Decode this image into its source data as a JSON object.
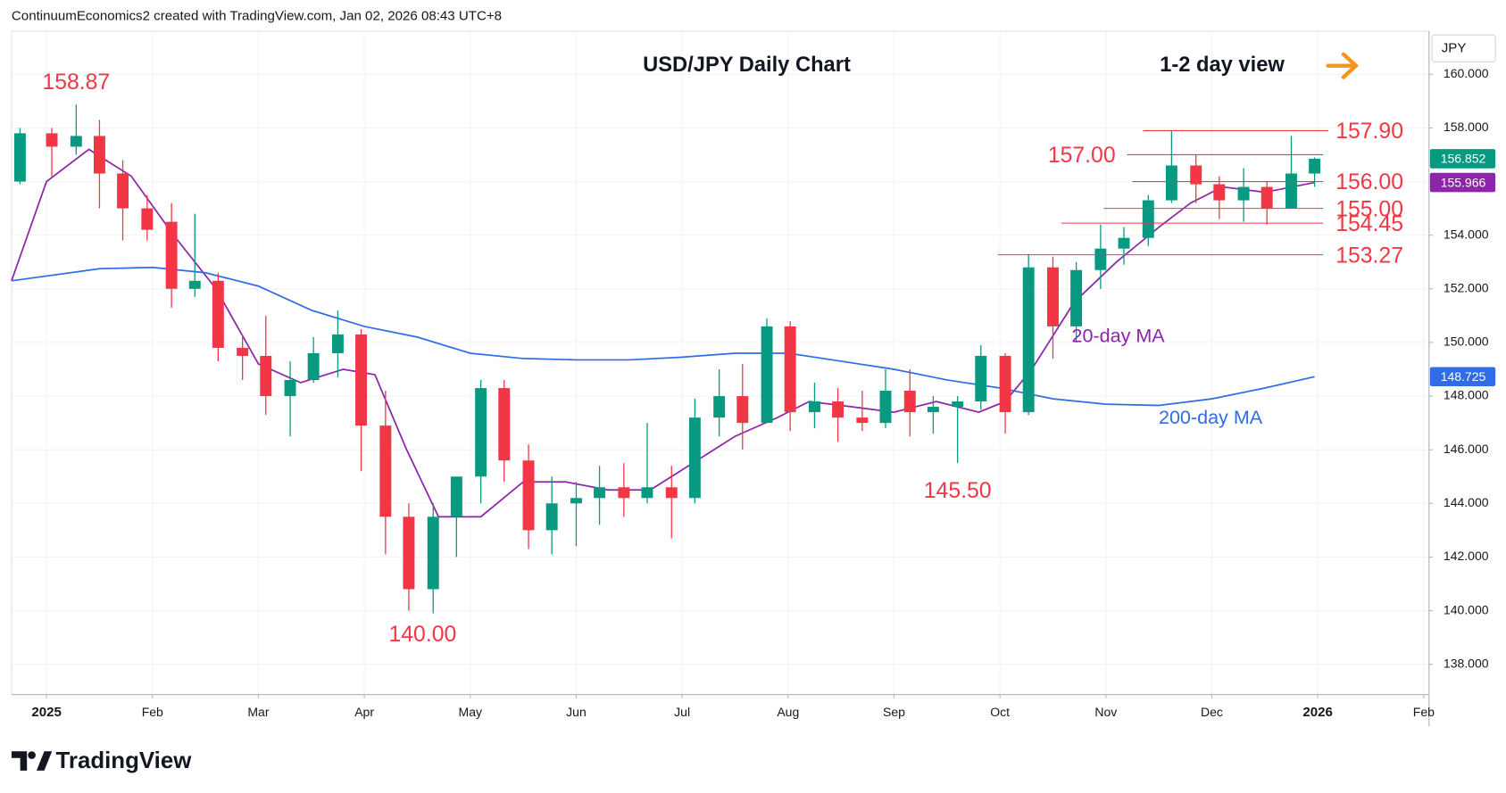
{
  "chart_data": {
    "type": "candlestick",
    "header": "ContinuumEconomics2 created with TradingView.com, Jan 02, 2026 08:43 UTC+8",
    "title": "USD/JPY Daily Chart",
    "subtitle": "1-2 day view",
    "currency": "JPY",
    "brand": "TradingView",
    "up_color": "#089981",
    "down_color": "#f23645",
    "grid": true,
    "xlim": [
      -0.33,
      13.05
    ],
    "ylim": [
      136.87,
      161.61
    ],
    "xticks": [
      {
        "value": 0,
        "label": "2025"
      },
      {
        "value": 1,
        "label": "Feb"
      },
      {
        "value": 2,
        "label": "Mar"
      },
      {
        "value": 3,
        "label": "Apr"
      },
      {
        "value": 4,
        "label": "May"
      },
      {
        "value": 5,
        "label": "Jun"
      },
      {
        "value": 6,
        "label": "Jul"
      },
      {
        "value": 7,
        "label": "Aug"
      },
      {
        "value": 8,
        "label": "Sep"
      },
      {
        "value": 9,
        "label": "Oct"
      },
      {
        "value": 10,
        "label": "Nov"
      },
      {
        "value": 11,
        "label": "Dec"
      },
      {
        "value": 12,
        "label": "2026"
      },
      {
        "value": 13,
        "label": "Feb"
      }
    ],
    "yticks": [
      {
        "value": 138,
        "label": "138.000"
      },
      {
        "value": 140,
        "label": "140.000"
      },
      {
        "value": 142,
        "label": "142.000"
      },
      {
        "value": 144,
        "label": "144.000"
      },
      {
        "value": 146,
        "label": "146.000"
      },
      {
        "value": 148,
        "label": "148.000"
      },
      {
        "value": 150,
        "label": "150.000"
      },
      {
        "value": 152,
        "label": "152.000"
      },
      {
        "value": 154,
        "label": "154.000"
      },
      {
        "value": 156,
        "label": "156.000"
      },
      {
        "value": 158,
        "label": "158.000"
      },
      {
        "value": 160,
        "label": "160.000"
      }
    ],
    "candles": {
      "x": [
        -0.25,
        0.05,
        0.28,
        0.5,
        0.72,
        0.95,
        1.18,
        1.4,
        1.62,
        1.85,
        2.07,
        2.3,
        2.52,
        2.75,
        2.97,
        3.2,
        3.42,
        3.65,
        3.87,
        4.1,
        4.32,
        4.55,
        4.77,
        5.0,
        5.22,
        5.45,
        5.67,
        5.9,
        6.12,
        6.35,
        6.57,
        6.8,
        7.02,
        7.25,
        7.47,
        7.7,
        7.92,
        8.15,
        8.37,
        8.6,
        8.82,
        9.05,
        9.27,
        9.5,
        9.72,
        9.95,
        10.17,
        10.4,
        10.62,
        10.85,
        11.07,
        11.3,
        11.52,
        11.75,
        11.97
      ],
      "open": [
        156.0,
        157.8,
        157.3,
        157.7,
        156.3,
        155.0,
        154.5,
        152.0,
        152.3,
        149.8,
        149.5,
        148.0,
        148.6,
        149.6,
        150.3,
        146.9,
        143.5,
        140.8,
        143.5,
        145.0,
        148.3,
        145.6,
        143.0,
        144.0,
        144.2,
        144.6,
        144.2,
        144.6,
        144.2,
        147.2,
        148.0,
        147.0,
        150.6,
        147.4,
        147.8,
        147.2,
        147.0,
        148.2,
        147.4,
        147.6,
        147.8,
        149.5,
        147.4,
        152.8,
        150.6,
        152.7,
        153.5,
        153.9,
        155.3,
        156.6,
        155.9,
        155.3,
        155.8,
        155.0,
        156.3
      ],
      "high": [
        158.0,
        158.0,
        158.87,
        158.3,
        156.8,
        155.5,
        155.2,
        154.8,
        152.6,
        150.3,
        151.0,
        149.3,
        150.2,
        151.2,
        150.5,
        148.2,
        144.0,
        144.0,
        144.8,
        148.6,
        148.6,
        146.2,
        145.0,
        144.8,
        145.4,
        145.5,
        147.0,
        145.4,
        147.9,
        149.0,
        149.2,
        150.9,
        150.8,
        148.5,
        148.3,
        148.2,
        149.0,
        149.0,
        148.0,
        148.0,
        149.9,
        149.6,
        153.3,
        153.2,
        153.0,
        154.4,
        154.3,
        155.5,
        157.9,
        157.0,
        156.2,
        156.5,
        156.0,
        157.7,
        156.9
      ],
      "low": [
        155.9,
        156.2,
        157.0,
        155.0,
        153.8,
        153.8,
        151.3,
        151.7,
        149.3,
        148.6,
        147.3,
        146.5,
        148.5,
        148.7,
        145.2,
        142.1,
        140.0,
        139.9,
        142.0,
        144.0,
        144.8,
        142.3,
        142.1,
        142.4,
        143.2,
        143.5,
        144.0,
        142.7,
        144.0,
        146.5,
        146.0,
        147.0,
        146.7,
        146.8,
        146.3,
        146.7,
        146.8,
        146.5,
        146.6,
        145.5,
        147.5,
        146.6,
        147.3,
        149.4,
        150.0,
        152.0,
        152.9,
        153.6,
        155.2,
        155.2,
        154.6,
        154.5,
        154.4,
        155.0,
        155.8
      ],
      "close": [
        157.8,
        157.3,
        157.7,
        156.3,
        155.0,
        154.2,
        152.0,
        152.3,
        149.8,
        149.5,
        148.0,
        148.6,
        149.6,
        150.3,
        146.9,
        143.5,
        140.8,
        143.5,
        145.0,
        148.3,
        145.6,
        143.0,
        144.0,
        144.2,
        144.6,
        144.2,
        144.6,
        144.2,
        147.2,
        148.0,
        147.0,
        150.6,
        147.4,
        147.8,
        147.2,
        147.0,
        148.2,
        147.4,
        147.6,
        147.8,
        149.5,
        147.4,
        152.8,
        150.6,
        152.7,
        153.5,
        153.9,
        155.3,
        156.6,
        155.9,
        155.3,
        155.8,
        155.0,
        156.3,
        156.85
      ]
    },
    "series": [
      {
        "name": "20-day MA",
        "color": "#8e24aa",
        "x": [
          -0.33,
          0,
          0.4,
          0.8,
          1.2,
          1.6,
          2,
          2.4,
          2.8,
          3.1,
          3.4,
          3.7,
          4.1,
          4.5,
          4.9,
          5.3,
          5.7,
          6.1,
          6.5,
          6.9,
          7.2,
          7.6,
          8,
          8.4,
          8.8,
          9.05,
          9.3,
          9.7,
          10.1,
          10.5,
          10.8,
          11.1,
          11.5,
          11.97
        ],
        "values": [
          152.3,
          156,
          157.2,
          156.2,
          154,
          152,
          149.2,
          148.5,
          149,
          148.8,
          146,
          143.5,
          143.5,
          144.8,
          144.8,
          144.5,
          144.5,
          145.5,
          146.5,
          147.2,
          147.8,
          147.6,
          147.4,
          147.8,
          147.4,
          147.8,
          149,
          151.5,
          153,
          154.3,
          155.2,
          155.8,
          155.6,
          155.966
        ]
      },
      {
        "name": "200-day MA",
        "color": "#2f6ce5",
        "x": [
          -0.33,
          0.5,
          1,
          1.5,
          2,
          2.5,
          3,
          3.5,
          4,
          4.5,
          5,
          5.5,
          6,
          6.5,
          7,
          7.5,
          8,
          8.5,
          9,
          9.5,
          10,
          10.5,
          11,
          11.5,
          11.97
        ],
        "values": [
          152.3,
          152.75,
          152.8,
          152.6,
          152.1,
          151.2,
          150.6,
          150.2,
          149.6,
          149.4,
          149.35,
          149.35,
          149.45,
          149.6,
          149.6,
          149.3,
          149,
          148.6,
          148.3,
          147.9,
          147.7,
          147.65,
          147.9,
          148.3,
          148.725
        ]
      }
    ],
    "levels_color": "#f23645",
    "levels": [
      {
        "value": 157.9,
        "label": "157.90",
        "x": [
          10.35,
          12.1
        ]
      },
      {
        "value": 157.0,
        "label": "157.00",
        "x": [
          10.2,
          12.05
        ]
      },
      {
        "value": 156.0,
        "label": "156.00",
        "x": [
          10.25,
          12.05
        ]
      },
      {
        "value": 155.0,
        "label": "155.00",
        "x": [
          9.98,
          12.05
        ]
      },
      {
        "value": 154.45,
        "label": "154.45",
        "x": [
          9.58,
          12.05
        ]
      },
      {
        "value": 153.27,
        "label": "153.27",
        "x": [
          8.98,
          12.05
        ]
      }
    ],
    "annotations": [
      {
        "text": "158.87",
        "x": 0.28,
        "y": 158.87
      },
      {
        "text": "140.00",
        "x": 3.55,
        "y": 140.0
      },
      {
        "text": "145.50",
        "x": 8.6,
        "y": 145.5
      }
    ],
    "price_tags": [
      {
        "value": 156.852,
        "color": "#089981"
      },
      {
        "value": 155.966,
        "color": "#8e24aa"
      },
      {
        "value": 148.725,
        "color": "#2f6ce5"
      }
    ]
  }
}
